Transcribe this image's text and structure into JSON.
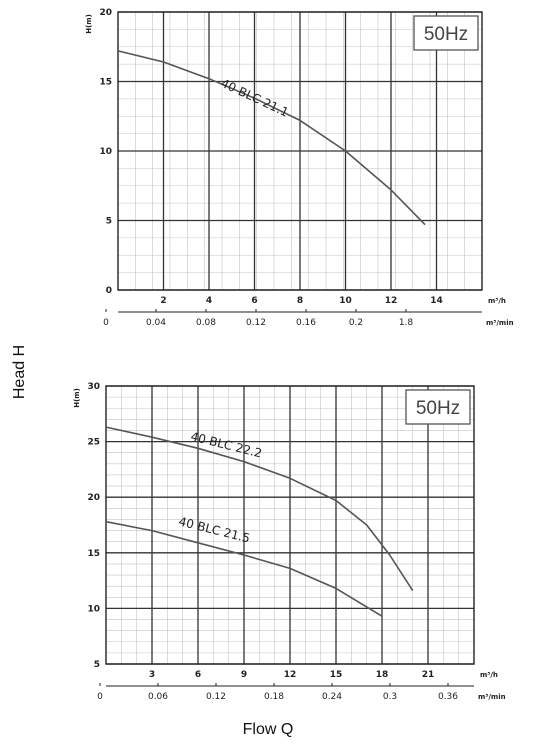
{
  "figure": {
    "ylabel": "Head H",
    "xlabel": "Flow Q"
  },
  "chart_data": [
    {
      "type": "line",
      "frequency_label": "50Hz",
      "ylabel": "H(m)",
      "y_ticks": [
        "0",
        "5",
        "10",
        "15",
        "20"
      ],
      "ylim": [
        0,
        20
      ],
      "x_ticks_primary": [
        "2",
        "4",
        "6",
        "8",
        "10",
        "12",
        "14"
      ],
      "x_unit_primary": "m³/h",
      "xlim": [
        0,
        16
      ],
      "x_ticks_secondary": [
        "0",
        "0.04",
        "0.08",
        "0.12",
        "0.16",
        "0.2",
        "1.8"
      ],
      "x_unit_secondary": "m³/min",
      "grid": true,
      "series": [
        {
          "name": "40 BLC 21.1",
          "x": [
            0,
            2,
            4,
            6,
            8,
            10,
            12,
            13.5
          ],
          "y": [
            17.2,
            16.4,
            15.2,
            13.8,
            12.2,
            10.0,
            7.2,
            4.7
          ]
        }
      ]
    },
    {
      "type": "line",
      "frequency_label": "50Hz",
      "ylabel": "H(m)",
      "y_ticks": [
        "5",
        "10",
        "15",
        "20",
        "25",
        "30"
      ],
      "ylim": [
        5,
        30
      ],
      "x_ticks_primary": [
        "3",
        "6",
        "9",
        "12",
        "15",
        "18",
        "21"
      ],
      "x_unit_primary": "m³/h",
      "xlim": [
        0,
        24
      ],
      "x_ticks_secondary": [
        "0",
        "0.06",
        "0.12",
        "0.18",
        "0.24",
        "0.3",
        "0.36"
      ],
      "x_unit_secondary": "m³/min",
      "grid": true,
      "series": [
        {
          "name": "40 BLC 22.2",
          "x": [
            0,
            3,
            6,
            9,
            12,
            15,
            17,
            18.5,
            20
          ],
          "y": [
            26.3,
            25.4,
            24.4,
            23.2,
            21.7,
            19.7,
            17.5,
            14.8,
            11.6
          ]
        },
        {
          "name": "40 BLC 21.5",
          "x": [
            0,
            3,
            6,
            9,
            12,
            15,
            18
          ],
          "y": [
            17.8,
            17.0,
            15.9,
            14.8,
            13.6,
            11.8,
            9.3
          ]
        }
      ]
    }
  ]
}
